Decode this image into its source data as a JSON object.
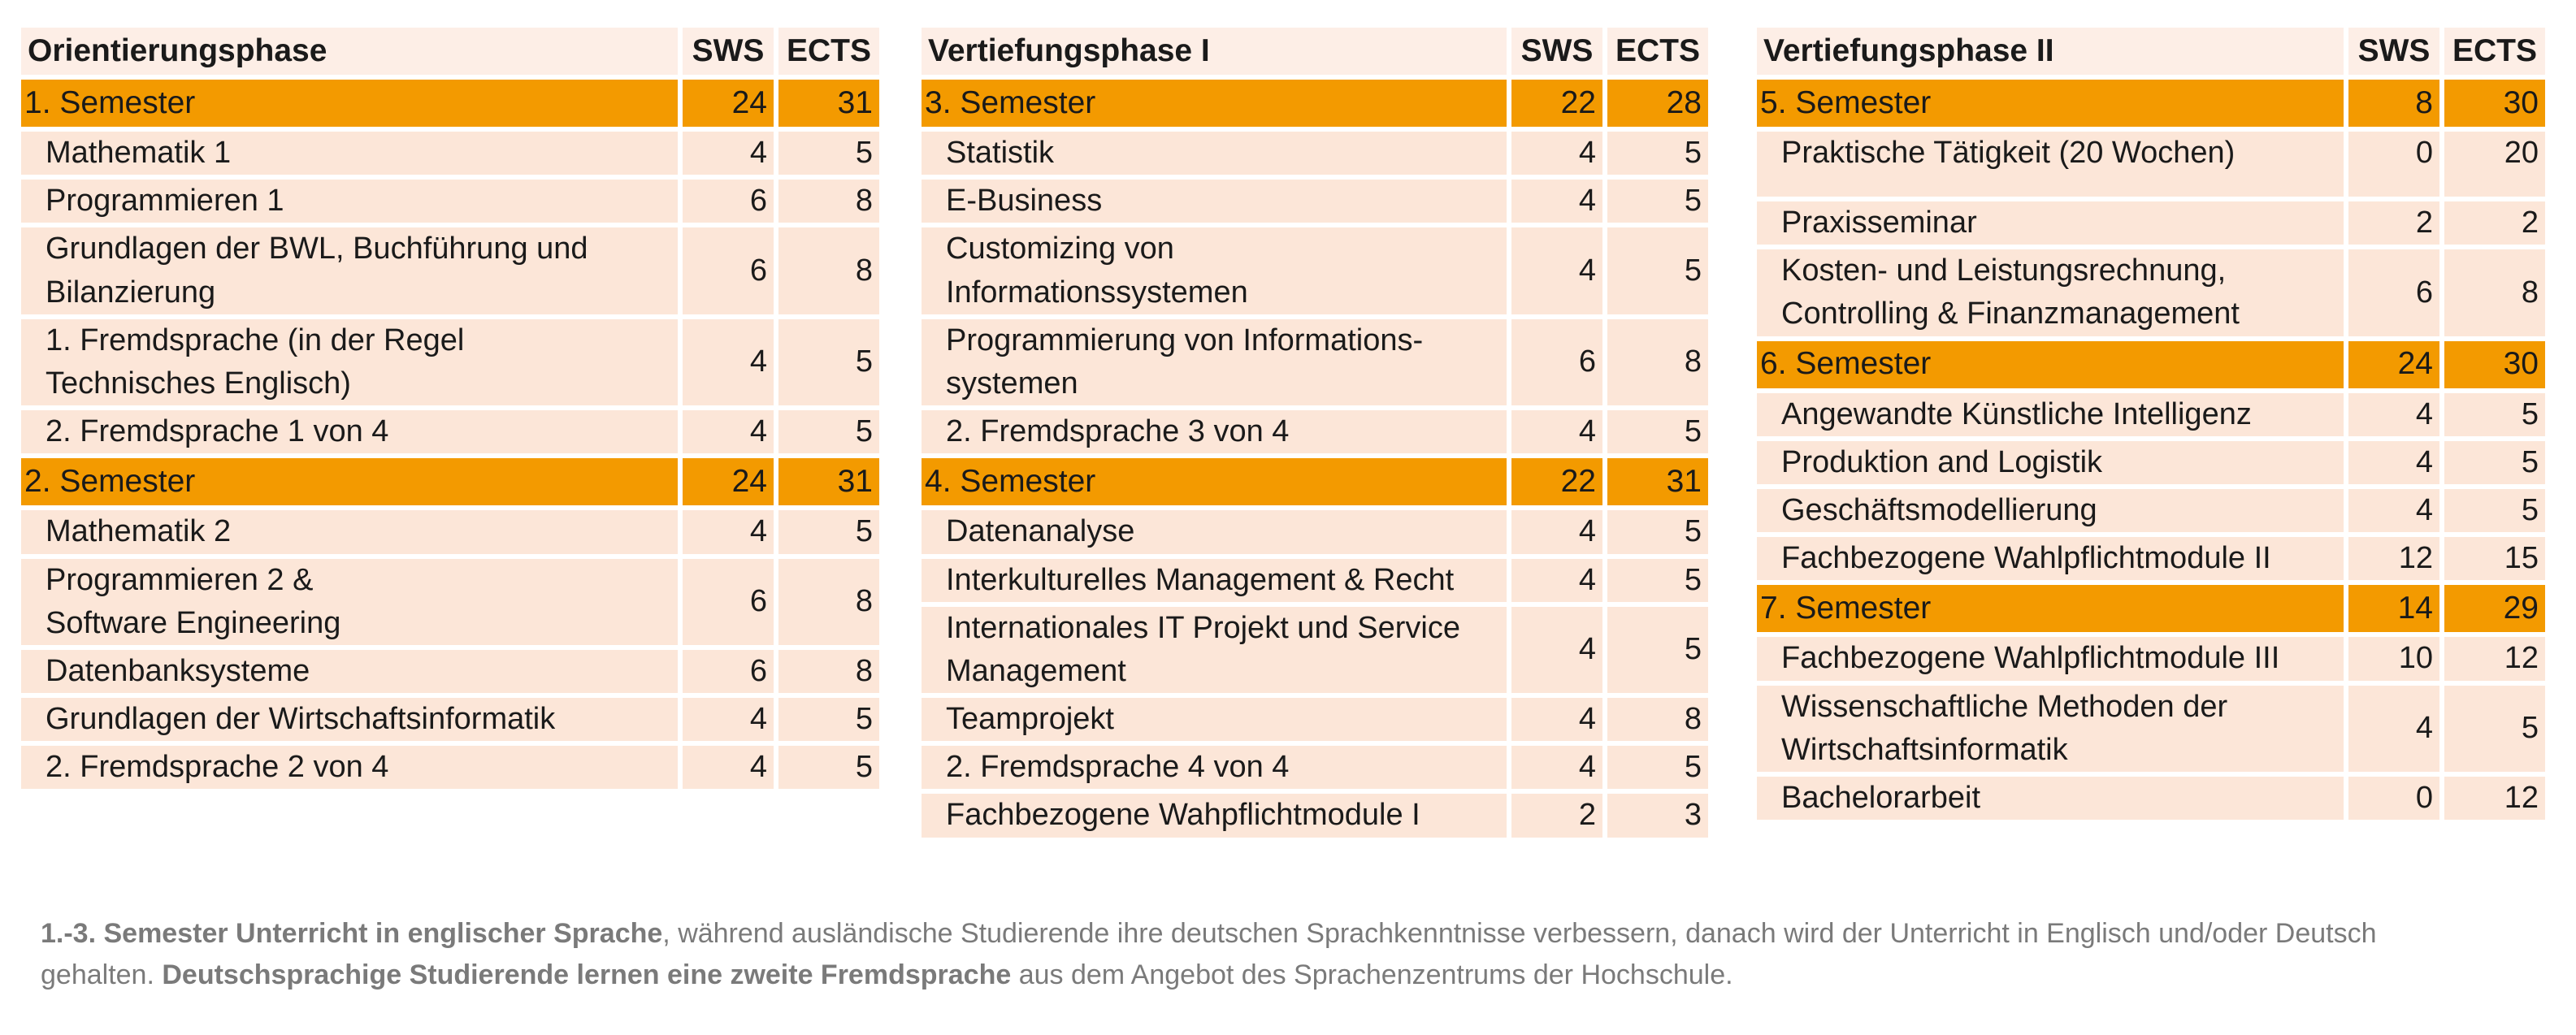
{
  "panels": [
    {
      "title": "Orientierungsphase",
      "col_sws": "SWS",
      "col_ects": "ECTS",
      "rows": [
        {
          "kind": "semester",
          "name": "1. Semester",
          "sws": "24",
          "ects": "31"
        },
        {
          "kind": "course",
          "name": "Mathematik 1",
          "sws": "4",
          "ects": "5"
        },
        {
          "kind": "course",
          "name": "Programmieren 1",
          "sws": "6",
          "ects": "8"
        },
        {
          "kind": "course",
          "name": "Grundlagen der BWL, Buchführung und\nBilanzierung",
          "sws": "6",
          "ects": "8"
        },
        {
          "kind": "course",
          "name": "1. Fremdsprache (in der Regel\nTechnisches Englisch)",
          "sws": "4",
          "ects": "5"
        },
        {
          "kind": "course",
          "name": "2. Fremdsprache 1 von 4",
          "sws": "4",
          "ects": "5"
        },
        {
          "kind": "semester",
          "name": "2. Semester",
          "sws": "24",
          "ects": "31"
        },
        {
          "kind": "course",
          "name": "Mathematik 2",
          "sws": "4",
          "ects": "5"
        },
        {
          "kind": "course",
          "name": "Programmieren 2 &\nSoftware Engineering",
          "sws": "6",
          "ects": "8"
        },
        {
          "kind": "course",
          "name": "Datenbanksysteme",
          "sws": "6",
          "ects": "8"
        },
        {
          "kind": "course",
          "name": "Grundlagen der Wirtschaftsinformatik",
          "sws": "4",
          "ects": "5"
        },
        {
          "kind": "course",
          "name": "2. Fremdsprache 2 von 4",
          "sws": "4",
          "ects": "5"
        }
      ]
    },
    {
      "title": "Vertiefungsphase I",
      "col_sws": "SWS",
      "col_ects": "ECTS",
      "rows": [
        {
          "kind": "semester",
          "name": "3. Semester",
          "sws": "22",
          "ects": "28"
        },
        {
          "kind": "course",
          "name": "Statistik",
          "sws": "4",
          "ects": "5"
        },
        {
          "kind": "course",
          "name": "E-Business",
          "sws": "4",
          "ects": "5"
        },
        {
          "kind": "course",
          "name": "Customizing von\nInformationssystemen",
          "sws": "4",
          "ects": "5"
        },
        {
          "kind": "course",
          "name": "Programmierung von Informations-\nsystemen",
          "sws": "6",
          "ects": "8"
        },
        {
          "kind": "course",
          "name": "2. Fremdsprache 3 von 4",
          "sws": "4",
          "ects": "5"
        },
        {
          "kind": "semester",
          "name": "4. Semester",
          "sws": "22",
          "ects": "31"
        },
        {
          "kind": "course",
          "name": "Datenanalyse",
          "sws": "4",
          "ects": "5"
        },
        {
          "kind": "course",
          "name": "Interkulturelles Management & Recht",
          "sws": "4",
          "ects": "5"
        },
        {
          "kind": "course",
          "name": "Internationales IT Projekt und Service\nManagement",
          "sws": "4",
          "ects": "5"
        },
        {
          "kind": "course",
          "name": "Teamprojekt",
          "sws": "4",
          "ects": "8"
        },
        {
          "kind": "course",
          "name": "2. Fremdsprache 4 von 4",
          "sws": "4",
          "ects": "5"
        },
        {
          "kind": "course",
          "name": "Fachbezogene Wahpflichtmodule I",
          "sws": "2",
          "ects": "3"
        }
      ]
    },
    {
      "title": "Vertiefungsphase II",
      "col_sws": "SWS",
      "col_ects": "ECTS",
      "rows": [
        {
          "kind": "semester",
          "name": "5. Semester",
          "sws": "8",
          "ects": "30"
        },
        {
          "kind": "course",
          "name": "Praktische Tätigkeit (20 Wochen)",
          "sws": "0",
          "ects": "20",
          "tall": true
        },
        {
          "kind": "course",
          "name": "Praxisseminar",
          "sws": "2",
          "ects": "2"
        },
        {
          "kind": "course",
          "name": "Kosten- und Leistungsrechnung,\nControlling & Finanzmanagement",
          "sws": "6",
          "ects": "8"
        },
        {
          "kind": "semester",
          "name": "6. Semester",
          "sws": "24",
          "ects": "30"
        },
        {
          "kind": "course",
          "name": "Angewandte Künstliche Intelligenz",
          "sws": "4",
          "ects": "5"
        },
        {
          "kind": "course",
          "name": "Produktion and Logistik",
          "sws": "4",
          "ects": "5"
        },
        {
          "kind": "course",
          "name": "Geschäftsmodellierung",
          "sws": "4",
          "ects": "5"
        },
        {
          "kind": "course",
          "name": "Fachbezogene Wahlpflichtmodule II",
          "sws": "12",
          "ects": "15"
        },
        {
          "kind": "semester",
          "name": "7. Semester",
          "sws": "14",
          "ects": "29"
        },
        {
          "kind": "course",
          "name": "Fachbezogene Wahlpflichtmodule III",
          "sws": "10",
          "ects": "12"
        },
        {
          "kind": "course",
          "name": "Wissenschaftliche Methoden der\nWirtschaftsinformatik",
          "sws": "4",
          "ects": "5"
        },
        {
          "kind": "course",
          "name": "Bachelorarbeit",
          "sws": "0",
          "ects": "12"
        }
      ]
    }
  ],
  "footnote": {
    "part1_bold": "1.-3. Semester Unterricht in englischer Sprache",
    "part2": ", während ausländische Studierende ihre deutschen Sprachkenntnisse verbessern, danach wird der Unterricht in Englisch und/oder Deutsch gehalten. ",
    "part3_bold": "Deutschsprachige Studierende lernen eine zweite Fremdsprache",
    "part4": " aus dem Angebot des Sprachenzentrums der Hochschule."
  },
  "colors": {
    "semester_row": "#f39a00",
    "course_row": "#fce6d8",
    "header_row": "#fdeee6",
    "footnote_text": "#7a7a7a"
  }
}
